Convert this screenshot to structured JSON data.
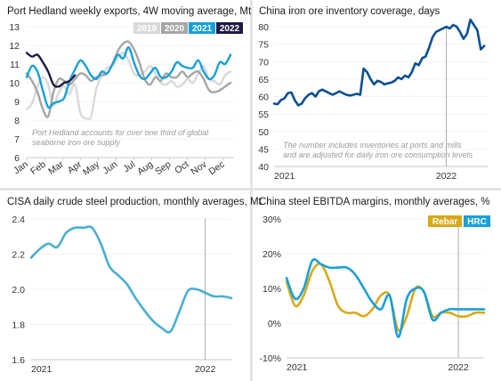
{
  "colors": {
    "grey_light": "#d9d9d9",
    "grey_mid": "#a6a6a6",
    "blue": "#16a0db",
    "navy": "#1f1a44",
    "dark_blue": "#0a4f94",
    "steel_blue": "#4aaed3",
    "rebar": "#d9a917",
    "hrc": "#17a0db"
  },
  "chart_data": [
    {
      "type": "line",
      "title": "Port Hedland weekly exports, 4W moving average, Mt",
      "categories": [
        "Jan",
        "Feb",
        "Mar",
        "Apr",
        "May",
        "Jun",
        "Jul",
        "Aug",
        "Sep",
        "Oct",
        "Nov",
        "Dec"
      ],
      "ylim": [
        6,
        13
      ],
      "yticks": [
        "6",
        "7",
        "8",
        "9",
        "10",
        "11",
        "12",
        "13"
      ],
      "annotation": "Port Hedland accounts for over one third of global seaborne iron ore supply",
      "annotation_lines": [
        "Port Hedland accounts for over one third of global",
        "seaborne iron ore supply"
      ],
      "legend": [
        "2019",
        "2020",
        "2021",
        "2022"
      ],
      "series": [
        {
          "name": "2019",
          "color": "#d9d9d9",
          "x": [
            0,
            0.3,
            0.6,
            0.9,
            1.2,
            1.5,
            1.8,
            2.1,
            2.4,
            2.7,
            3.0,
            3.3,
            3.6,
            3.9,
            4.2,
            4.5,
            4.8,
            5.1,
            5.4,
            5.7,
            6.0,
            6.3,
            6.6,
            6.9,
            7.2,
            7.5,
            7.8,
            8.1,
            8.4,
            8.7,
            9.0,
            9.3,
            9.6,
            9.9,
            10.2,
            10.5,
            10.8,
            11.1,
            11.4
          ],
          "values": [
            8.6,
            8.9,
            9.8,
            10.3,
            9.9,
            8.8,
            9.5,
            9.8,
            9.4,
            9.9,
            8.4,
            8.1,
            8.2,
            9.7,
            10.4,
            10.8,
            10.9,
            11.3,
            11.6,
            11.2,
            10.5,
            10.4,
            10.6,
            10.9,
            10.5,
            10.0,
            9.9,
            10.1,
            9.8,
            9.9,
            10.2,
            10.0,
            10.5,
            10.9,
            10.2,
            10.1,
            9.9,
            10.4,
            10.6
          ]
        },
        {
          "name": "2020",
          "color": "#a6a6a6",
          "x": [
            0,
            0.3,
            0.6,
            0.9,
            1.2,
            1.5,
            1.8,
            2.1,
            2.4,
            2.7,
            3.0,
            3.3,
            3.6,
            3.9,
            4.2,
            4.5,
            4.8,
            5.1,
            5.4,
            5.7,
            6.0,
            6.3,
            6.6,
            6.9,
            7.2,
            7.5,
            7.8,
            8.1,
            8.4,
            8.7,
            9.0,
            9.3,
            9.6,
            9.9,
            10.2,
            10.5,
            10.8,
            11.1,
            11.4
          ],
          "values": [
            10.5,
            10.1,
            9.5,
            8.6,
            8.2,
            9.5,
            10.2,
            10.1,
            9.9,
            10.2,
            10.5,
            10.4,
            10.1,
            10.3,
            10.4,
            10.5,
            11.0,
            11.7,
            12.1,
            12.2,
            11.8,
            11.1,
            10.2,
            9.9,
            10.3,
            10.1,
            10.5,
            10.3,
            10.3,
            10.6,
            10.3,
            10.5,
            10.6,
            10.2,
            9.6,
            9.5,
            9.6,
            9.8,
            10.0
          ]
        },
        {
          "name": "2021",
          "color": "#16a0db",
          "x": [
            0,
            0.3,
            0.6,
            0.9,
            1.2,
            1.5,
            1.8,
            2.1,
            2.4,
            2.7,
            3.0,
            3.3,
            3.6,
            3.9,
            4.2,
            4.5,
            4.8,
            5.1,
            5.4,
            5.7,
            6.0,
            6.3,
            6.6,
            6.9,
            7.2,
            7.5,
            7.8,
            8.1,
            8.4,
            8.7,
            9.0,
            9.3,
            9.6,
            9.9,
            10.2,
            10.5,
            10.8,
            11.1,
            11.4
          ],
          "values": [
            10.3,
            10.9,
            10.6,
            9.6,
            8.7,
            8.9,
            9.0,
            9.2,
            10.1,
            10.7,
            11.2,
            10.9,
            10.4,
            10.2,
            10.6,
            10.5,
            11.0,
            11.5,
            11.3,
            11.9,
            11.1,
            10.4,
            10.2,
            10.5,
            10.8,
            10.3,
            10.3,
            10.6,
            11.1,
            10.9,
            10.8,
            10.8,
            11.2,
            10.6,
            10.2,
            10.4,
            11.1,
            11.0,
            11.5
          ]
        },
        {
          "name": "2022",
          "color": "#1f1a44",
          "x": [
            0,
            0.3,
            0.6,
            0.9,
            1.2,
            1.5,
            1.8,
            2.1,
            2.4,
            2.7
          ],
          "values": [
            11.6,
            11.4,
            11.5,
            11.1,
            10.6,
            9.9,
            9.8,
            10.0,
            10.1,
            10.4
          ]
        }
      ]
    },
    {
      "type": "line",
      "title": "China iron ore inventory coverage, days",
      "ylim": [
        40,
        80
      ],
      "yticks": [
        "40",
        "45",
        "50",
        "55",
        "60",
        "65",
        "70",
        "75",
        "80"
      ],
      "xticks": [
        "2021",
        "2022"
      ],
      "annotation": "The number includes inventories at ports and mills and are adjusted for daily iron ore consumption levels",
      "annotation_lines": [
        "The number includes inventories at ports and mills",
        "and are adjusted for daily iron ore consumption levels"
      ],
      "series": [
        {
          "name": "",
          "color": "#0a4f94",
          "x": [
            0,
            0.02,
            0.04,
            0.06,
            0.08,
            0.1,
            0.12,
            0.14,
            0.16,
            0.18,
            0.2,
            0.22,
            0.24,
            0.26,
            0.28,
            0.3,
            0.32,
            0.34,
            0.36,
            0.38,
            0.4,
            0.42,
            0.44,
            0.46,
            0.48,
            0.5,
            0.52,
            0.54,
            0.56,
            0.58,
            0.6,
            0.62,
            0.64,
            0.66,
            0.68,
            0.7,
            0.72,
            0.74,
            0.76,
            0.78,
            0.8,
            0.82,
            0.84,
            0.86,
            0.88,
            0.9,
            0.92,
            0.94,
            0.96,
            0.98,
            1.0,
            1.02,
            1.04,
            1.06,
            1.08,
            1.1,
            1.12,
            1.14,
            1.16,
            1.18,
            1.2,
            1.22
          ],
          "values": [
            58.0,
            57.8,
            59.0,
            59.5,
            61.0,
            61.2,
            59.0,
            57.5,
            58.0,
            59.5,
            60.5,
            61.0,
            60.0,
            61.5,
            62.0,
            61.5,
            61.0,
            60.5,
            61.0,
            61.5,
            61.0,
            60.5,
            60.3,
            60.5,
            60.8,
            60.5,
            68.0,
            67.0,
            65.0,
            63.5,
            64.5,
            64.2,
            63.5,
            63.8,
            64.0,
            64.5,
            65.5,
            65.0,
            66.0,
            65.5,
            67.0,
            69.5,
            69.0,
            71.0,
            71.5,
            74.0,
            77.0,
            78.5,
            79.0,
            79.5,
            80.0,
            79.5,
            80.5,
            80.0,
            78.5,
            76.5,
            78.0,
            82.0,
            80.5,
            79.0,
            73.5,
            74.5
          ]
        }
      ]
    },
    {
      "type": "line",
      "title": "CISA daily crude steel production, monthly averages, Mt",
      "ylim": [
        1.6,
        2.4
      ],
      "yticks": [
        "1.6",
        "1.8",
        "2.0",
        "2.2",
        "2.4"
      ],
      "xticks": [
        "2021",
        "2022"
      ],
      "series": [
        {
          "name": "",
          "color": "#4aaed3",
          "x": [
            0,
            1,
            2,
            3,
            4,
            5,
            6,
            7,
            8,
            9,
            10,
            11,
            12,
            13,
            14,
            15,
            16,
            17,
            18,
            19,
            20,
            21,
            22,
            23
          ],
          "values": [
            2.18,
            2.23,
            2.26,
            2.24,
            2.32,
            2.35,
            2.35,
            2.35,
            2.26,
            2.13,
            2.08,
            2.03,
            1.95,
            1.88,
            1.82,
            1.78,
            1.76,
            1.87,
            1.99,
            2.0,
            1.98,
            1.96,
            1.96,
            1.95
          ]
        }
      ]
    },
    {
      "type": "line",
      "title": "China steel EBITDA margins, monthly averages, %",
      "ylim": [
        -10,
        30
      ],
      "yticks": [
        "-10%",
        "0%",
        "10%",
        "20%",
        "30%"
      ],
      "xticks": [
        "2021",
        "2022"
      ],
      "legend": [
        "Rebar",
        "HRC"
      ],
      "series": [
        {
          "name": "Rebar",
          "color": "#d9a917",
          "x": [
            0,
            1,
            2,
            3,
            4,
            5,
            6,
            7,
            8,
            9,
            10,
            11,
            12,
            13,
            14,
            15,
            16,
            17,
            18,
            19,
            20,
            21,
            22,
            23
          ],
          "values": [
            12,
            5,
            8,
            15,
            17,
            12,
            5,
            3,
            3,
            2,
            4,
            8,
            8,
            -2,
            2,
            10,
            9,
            2,
            3,
            3,
            2,
            2,
            3,
            3
          ]
        },
        {
          "name": "HRC",
          "color": "#17a0db",
          "x": [
            0,
            1,
            2,
            3,
            4,
            5,
            6,
            7,
            8,
            9,
            10,
            11,
            12,
            13,
            14,
            15,
            16,
            17,
            18,
            19,
            20,
            21,
            22,
            23
          ],
          "values": [
            13,
            7,
            10,
            18,
            17,
            16,
            16,
            16,
            14,
            10,
            6,
            4,
            8,
            -4,
            7,
            10,
            9,
            1,
            3,
            4,
            4,
            4,
            4,
            4
          ]
        }
      ]
    }
  ]
}
